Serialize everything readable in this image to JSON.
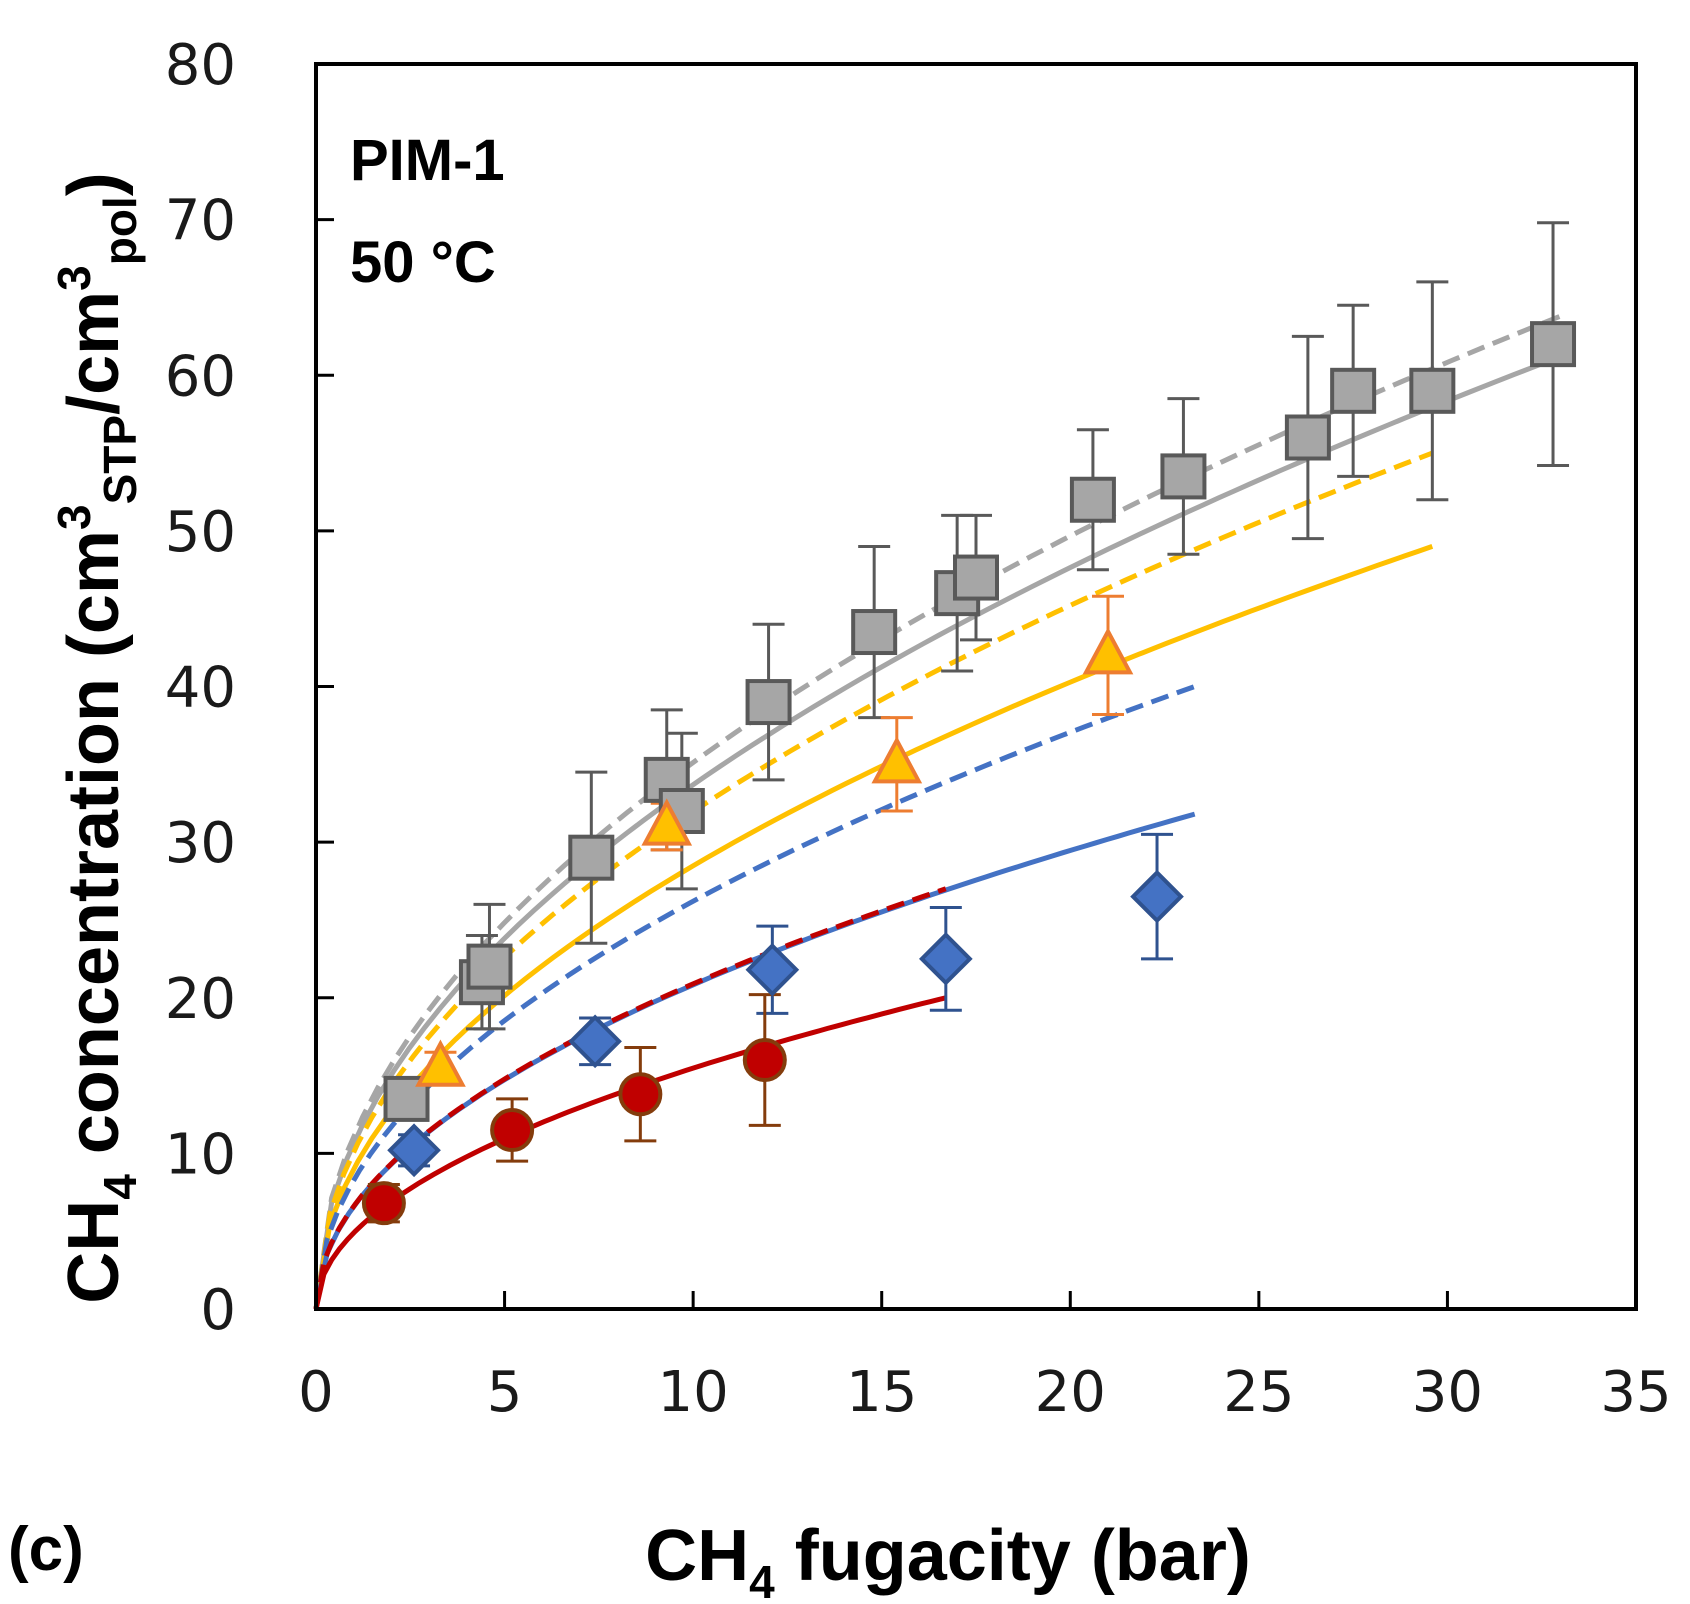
{
  "chart_data": {
    "type": "scatter",
    "title": "",
    "annotation": {
      "line1": "PIM-1",
      "line2": "50 °C"
    },
    "panel_label": "(c)",
    "xlabel": {
      "main": "CH",
      "sub": "4",
      "rest": " fugacity (bar)"
    },
    "ylabel": {
      "pre": "CH",
      "sub4": "4",
      "mid": " concentration (cm",
      "sup1": "3",
      "sub1": "STP",
      "slash": "/cm",
      "sup2": "3",
      "sub2": "pol",
      "end": ")"
    },
    "xlim": [
      0,
      35
    ],
    "ylim": [
      0,
      80
    ],
    "xticks": [
      "0",
      "5",
      "10",
      "15",
      "20",
      "25",
      "30",
      "35"
    ],
    "yticks": [
      "0",
      "10",
      "20",
      "30",
      "40",
      "50",
      "60",
      "70",
      "80"
    ],
    "grid": false,
    "series": [
      {
        "name": "gray squares",
        "marker": "square",
        "fill": "#a6a6a6",
        "stroke": "#595959",
        "x": [
          2.4,
          4.4,
          4.6,
          7.3,
          9.3,
          9.7,
          12.0,
          14.8,
          17.0,
          17.5,
          20.6,
          23.0,
          26.3,
          27.5,
          29.6,
          32.8
        ],
        "y": [
          13.5,
          21.0,
          22.0,
          29.0,
          34.0,
          32.0,
          39.0,
          43.5,
          46.0,
          47.0,
          52.0,
          53.5,
          56.0,
          59.0,
          59.0,
          62.0
        ],
        "err": [
          0.5,
          3.0,
          4.0,
          5.5,
          4.5,
          5.0,
          5.0,
          5.5,
          5.0,
          4.0,
          4.5,
          5.0,
          6.5,
          5.5,
          7.0,
          7.8
        ]
      },
      {
        "name": "orange triangles",
        "marker": "triangle",
        "fill": "#ffc000",
        "stroke": "#ed7d31",
        "x": [
          3.3,
          9.3,
          15.4,
          21.0
        ],
        "y": [
          15.5,
          31.0,
          35.0,
          42.0
        ],
        "err": [
          1.0,
          1.5,
          3.0,
          3.8
        ]
      },
      {
        "name": "blue diamonds",
        "marker": "diamond",
        "fill": "#4472c4",
        "stroke": "#2f528f",
        "x": [
          2.6,
          7.4,
          12.1,
          16.7,
          22.3
        ],
        "y": [
          10.2,
          17.2,
          21.8,
          22.5,
          26.5
        ],
        "err": [
          1.0,
          1.5,
          2.8,
          3.3,
          4.0
        ]
      },
      {
        "name": "red circles",
        "marker": "circle",
        "fill": "#c00000",
        "stroke": "#843c0c",
        "x": [
          1.8,
          5.2,
          8.6,
          11.9
        ],
        "y": [
          6.8,
          11.5,
          13.8,
          16.0
        ],
        "err": [
          1.2,
          2.0,
          3.0,
          4.2
        ]
      }
    ],
    "curves": [
      {
        "name": "gray dashed fit",
        "color": "#a6a6a6",
        "dash": true,
        "xmax": 33.0,
        "ymax": 63.8
      },
      {
        "name": "gray solid fit",
        "color": "#a6a6a6",
        "dash": false,
        "xmax": 33.0,
        "ymax": 61.2
      },
      {
        "name": "orange dashed fit",
        "color": "#ffc000",
        "dash": true,
        "xmax": 29.6,
        "ymax": 55.0
      },
      {
        "name": "orange solid fit",
        "color": "#ffc000",
        "dash": false,
        "xmax": 29.6,
        "ymax": 49.0
      },
      {
        "name": "blue dashed fit",
        "color": "#4472c4",
        "dash": true,
        "xmax": 23.3,
        "ymax": 40.0
      },
      {
        "name": "blue solid fit",
        "color": "#4472c4",
        "dash": false,
        "xmax": 23.3,
        "ymax": 31.8
      },
      {
        "name": "red dashed fit",
        "color": "#c00000",
        "dash": true,
        "xmax": 16.7,
        "ymax": 27.0
      },
      {
        "name": "red solid fit",
        "color": "#c00000",
        "dash": false,
        "xmax": 16.7,
        "ymax": 20.0
      }
    ]
  }
}
